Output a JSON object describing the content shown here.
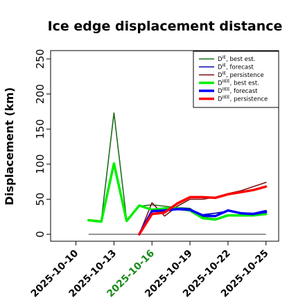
{
  "chart_data": {
    "type": "line",
    "title": "Ice edge displacement distance",
    "ylabel": "Displacement (km)",
    "xlabel": "",
    "ylim": [
      0,
      250
    ],
    "yticks": [
      0,
      50,
      100,
      150,
      200,
      250
    ],
    "xlim": [
      "2025-10-08",
      "2025-10-26"
    ],
    "xticks": [
      {
        "date": "2025-10-10",
        "label": "2025-10-10",
        "color": "#000000"
      },
      {
        "date": "2025-10-13",
        "label": "2025-10-13",
        "color": "#000000"
      },
      {
        "date": "2025-10-16",
        "label": "2025-10-16",
        "color": "#1a8a1a"
      },
      {
        "date": "2025-10-19",
        "label": "2025-10-19",
        "color": "#000000"
      },
      {
        "date": "2025-10-22",
        "label": "2025-10-22",
        "color": "#000000"
      },
      {
        "date": "2025-10-25",
        "label": "2025-10-25",
        "color": "#000000"
      }
    ],
    "reference_line": {
      "y": 0,
      "from": "2025-10-11",
      "to": "2025-10-25",
      "color": "#555555"
    },
    "legend_position": "top-right",
    "series": [
      {
        "name": "D^IE, best est.",
        "sup": "IE",
        "suffix": ", best est.",
        "color": "#1a6e1a",
        "width": 1.6,
        "x": [
          "2025-10-11",
          "2025-10-12",
          "2025-10-13",
          "2025-10-14",
          "2025-10-15",
          "2025-10-16",
          "2025-10-17",
          "2025-10-18",
          "2025-10-19",
          "2025-10-20",
          "2025-10-21",
          "2025-10-22",
          "2025-10-23",
          "2025-10-24",
          "2025-10-25"
        ],
        "y": [
          21,
          19,
          173,
          20,
          40,
          42,
          40,
          38,
          37,
          25,
          22,
          27,
          28,
          28,
          29
        ]
      },
      {
        "name": "D^IE, forecast",
        "sup": "IE",
        "suffix": ", forecast",
        "color": "#0000aa",
        "width": 1.6,
        "x": [
          "2025-10-15",
          "2025-10-16",
          "2025-10-17",
          "2025-10-18",
          "2025-10-19",
          "2025-10-20",
          "2025-10-21",
          "2025-10-22",
          "2025-10-23",
          "2025-10-24",
          "2025-10-25"
        ],
        "y": [
          0,
          33,
          33,
          38,
          36,
          28,
          30,
          33,
          30,
          30,
          34
        ]
      },
      {
        "name": "D^IE, persistence",
        "sup": "IE",
        "suffix": ", persistence",
        "color": "#7a1010",
        "width": 1.6,
        "x": [
          "2025-10-15",
          "2025-10-16",
          "2025-10-17",
          "2025-10-18",
          "2025-10-19",
          "2025-10-20",
          "2025-10-21",
          "2025-10-22",
          "2025-10-23",
          "2025-10-24",
          "2025-10-25"
        ],
        "y": [
          0,
          45,
          26,
          40,
          50,
          50,
          53,
          58,
          62,
          68,
          74
        ]
      },
      {
        "name": "D^IIEE, best est.",
        "sup": "IIEE",
        "suffix": ", best est.",
        "color": "#00ee00",
        "width": 3.5,
        "x": [
          "2025-10-11",
          "2025-10-12",
          "2025-10-13",
          "2025-10-14",
          "2025-10-15",
          "2025-10-16",
          "2025-10-17",
          "2025-10-18",
          "2025-10-19",
          "2025-10-20",
          "2025-10-21",
          "2025-10-22",
          "2025-10-23",
          "2025-10-24",
          "2025-10-25"
        ],
        "y": [
          20,
          18,
          101,
          19,
          41,
          35,
          37,
          37,
          34,
          23,
          21,
          27,
          27,
          27,
          29
        ]
      },
      {
        "name": "D^IIEE, forecast",
        "sup": "IIEE",
        "suffix": ", forecast",
        "color": "#0000ff",
        "width": 3.5,
        "x": [
          "2025-10-15",
          "2025-10-16",
          "2025-10-17",
          "2025-10-18",
          "2025-10-19",
          "2025-10-20",
          "2025-10-21",
          "2025-10-22",
          "2025-10-23",
          "2025-10-24",
          "2025-10-25"
        ],
        "y": [
          0,
          33,
          34,
          36,
          35,
          27,
          26,
          34,
          30,
          29,
          32
        ]
      },
      {
        "name": "D^IIEE, persistence",
        "sup": "IIEE",
        "suffix": ", persistence",
        "color": "#ff0000",
        "width": 3.5,
        "x": [
          "2025-10-15",
          "2025-10-16",
          "2025-10-17",
          "2025-10-18",
          "2025-10-19",
          "2025-10-20",
          "2025-10-21",
          "2025-10-22",
          "2025-10-23",
          "2025-10-24",
          "2025-10-25"
        ],
        "y": [
          0,
          29,
          31,
          44,
          53,
          53,
          52,
          57,
          60,
          63,
          68
        ]
      }
    ]
  }
}
